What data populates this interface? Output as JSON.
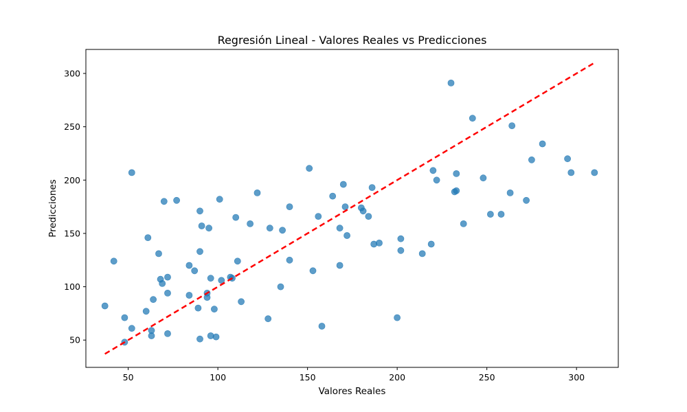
{
  "chart_data": {
    "type": "scatter",
    "title": "Regresión Lineal - Valores Reales vs Predicciones",
    "xlabel": "Valores Reales",
    "ylabel": "Predicciones",
    "xlim": [
      26.4,
      323.3
    ],
    "ylim": [
      24.4,
      322.5
    ],
    "xticks": [
      50,
      100,
      150,
      200,
      250,
      300
    ],
    "yticks": [
      50,
      100,
      150,
      200,
      250,
      300
    ],
    "grid": false,
    "colors": {
      "points": "#1f77b4",
      "reference_line": "#ff0000"
    },
    "reference_line": {
      "style": "dashed",
      "from": [
        37,
        37
      ],
      "to": [
        310,
        310
      ]
    },
    "points": [
      [
        37,
        82
      ],
      [
        42,
        124
      ],
      [
        48,
        48
      ],
      [
        48,
        71
      ],
      [
        52,
        61
      ],
      [
        52,
        207
      ],
      [
        60,
        77
      ],
      [
        61,
        146
      ],
      [
        63,
        59
      ],
      [
        63,
        54
      ],
      [
        64,
        88
      ],
      [
        67,
        131
      ],
      [
        68,
        107
      ],
      [
        69,
        103
      ],
      [
        70,
        180
      ],
      [
        72,
        109
      ],
      [
        72,
        94
      ],
      [
        72,
        56
      ],
      [
        77,
        181
      ],
      [
        84,
        120
      ],
      [
        84,
        92
      ],
      [
        87,
        115
      ],
      [
        89,
        80
      ],
      [
        90,
        171
      ],
      [
        90,
        133
      ],
      [
        90,
        51
      ],
      [
        91,
        157
      ],
      [
        94,
        94
      ],
      [
        94,
        90
      ],
      [
        95,
        155
      ],
      [
        96,
        108
      ],
      [
        96,
        54
      ],
      [
        98,
        79
      ],
      [
        99,
        53
      ],
      [
        101,
        182
      ],
      [
        102,
        106
      ],
      [
        107,
        109
      ],
      [
        108,
        108
      ],
      [
        110,
        165
      ],
      [
        111,
        124
      ],
      [
        113,
        86
      ],
      [
        118,
        159
      ],
      [
        122,
        188
      ],
      [
        128,
        70
      ],
      [
        129,
        155
      ],
      [
        135,
        100
      ],
      [
        136,
        153
      ],
      [
        140,
        175
      ],
      [
        140,
        125
      ],
      [
        151,
        211
      ],
      [
        153,
        115
      ],
      [
        156,
        166
      ],
      [
        158,
        63
      ],
      [
        164,
        185
      ],
      [
        168,
        155
      ],
      [
        168,
        120
      ],
      [
        170,
        196
      ],
      [
        171,
        175
      ],
      [
        172,
        148
      ],
      [
        180,
        174
      ],
      [
        181,
        171
      ],
      [
        184,
        166
      ],
      [
        186,
        193
      ],
      [
        187,
        140
      ],
      [
        190,
        141
      ],
      [
        200,
        71
      ],
      [
        202,
        145
      ],
      [
        202,
        134
      ],
      [
        214,
        131
      ],
      [
        219,
        140
      ],
      [
        220,
        209
      ],
      [
        222,
        200
      ],
      [
        230,
        291
      ],
      [
        232,
        189
      ],
      [
        233,
        206
      ],
      [
        233,
        190
      ],
      [
        237,
        159
      ],
      [
        242,
        258
      ],
      [
        248,
        202
      ],
      [
        252,
        168
      ],
      [
        258,
        168
      ],
      [
        263,
        188
      ],
      [
        264,
        251
      ],
      [
        272,
        181
      ],
      [
        275,
        219
      ],
      [
        281,
        234
      ],
      [
        295,
        220
      ],
      [
        297,
        207
      ],
      [
        310,
        207
      ]
    ]
  }
}
